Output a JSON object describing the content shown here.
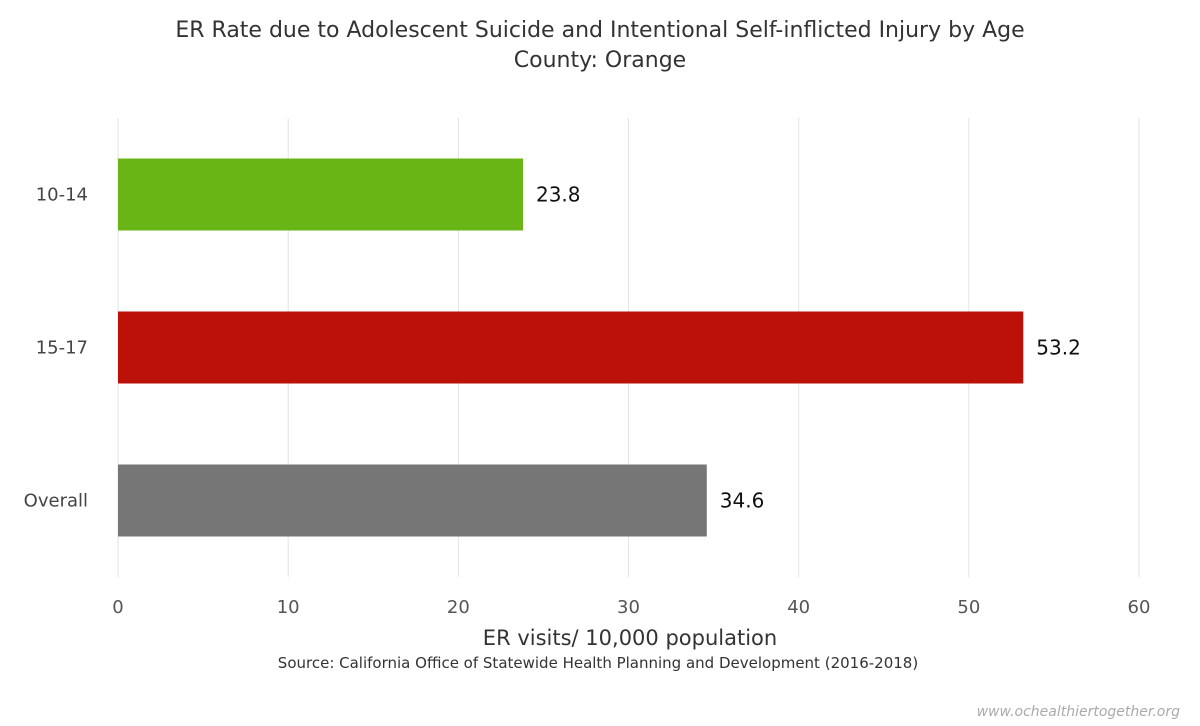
{
  "chart_data": {
    "type": "bar",
    "orientation": "horizontal",
    "title": "ER Rate due to Adolescent Suicide and Intentional Self-inflicted Injury by Age",
    "subtitle": "County: Orange",
    "categories": [
      "10-14",
      "15-17",
      "Overall"
    ],
    "values": [
      23.8,
      53.2,
      34.6
    ],
    "value_labels": [
      "23.8",
      "53.2",
      "34.6"
    ],
    "colors": [
      "#6ab516",
      "#bb1108",
      "#767676"
    ],
    "xlabel": "ER visits/ 10,000 population",
    "ylabel": "",
    "xlim": [
      0,
      60
    ],
    "ticks": [
      0,
      10,
      20,
      30,
      40,
      50,
      60
    ],
    "tick_labels": [
      "0",
      "10",
      "20",
      "30",
      "40",
      "50",
      "60"
    ],
    "grid": true,
    "source": "Source: California Office of Statewide Health Planning and Development (2016-2018)",
    "watermark": "www.ochealthiertogether.org"
  }
}
